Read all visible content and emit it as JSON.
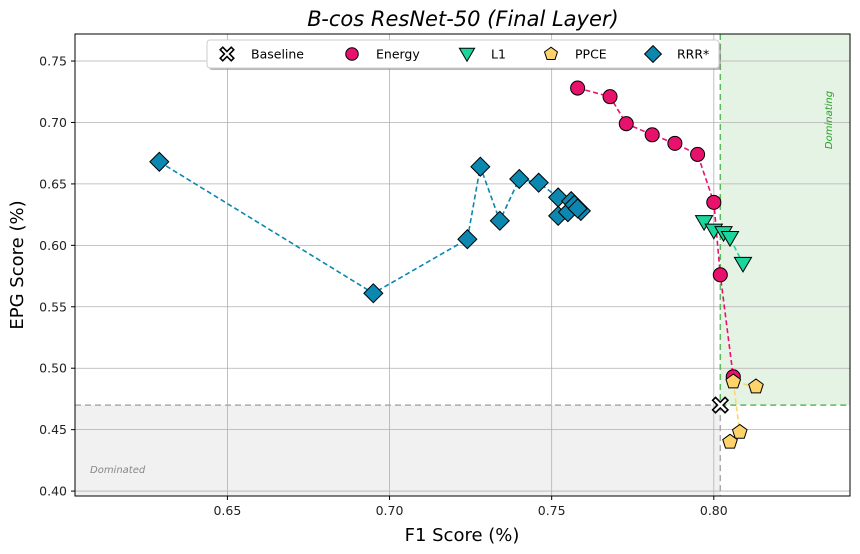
{
  "chart_data": {
    "type": "scatter",
    "title": "B-cos ResNet-50 (Final Layer)",
    "xlabel": "F1 Score (%)",
    "ylabel": "EPG Score (%)",
    "xlim": [
      0.603,
      0.842
    ],
    "ylim": [
      0.396,
      0.772
    ],
    "xticks": [
      0.65,
      0.7,
      0.75,
      0.8
    ],
    "xtick_labels": [
      "0.65",
      "0.70",
      "0.75",
      "0.80"
    ],
    "yticks": [
      0.4,
      0.45,
      0.5,
      0.55,
      0.6,
      0.65,
      0.7,
      0.75
    ],
    "ytick_labels": [
      "0.40",
      "0.45",
      "0.50",
      "0.55",
      "0.60",
      "0.65",
      "0.70",
      "0.75"
    ],
    "grid": true,
    "legend_position": "top-center",
    "baseline": {
      "x": 0.802,
      "y": 0.47
    },
    "regions": {
      "dominating_label": "Dominating",
      "dominated_label": "Dominated",
      "dominating_color": "#2ca02c",
      "dominated_color": "#999999"
    },
    "series": [
      {
        "name": "Baseline",
        "marker": "x-cross",
        "color": "#ffffff",
        "connected": false,
        "points": [
          [
            0.802,
            0.47
          ]
        ]
      },
      {
        "name": "Energy",
        "marker": "circle",
        "color": "#e8116b",
        "connected": true,
        "points": [
          [
            0.758,
            0.728
          ],
          [
            0.768,
            0.721
          ],
          [
            0.773,
            0.699
          ],
          [
            0.781,
            0.69
          ],
          [
            0.788,
            0.683
          ],
          [
            0.795,
            0.674
          ],
          [
            0.8,
            0.635
          ],
          [
            0.802,
            0.576
          ],
          [
            0.806,
            0.493
          ]
        ]
      },
      {
        "name": "L1",
        "marker": "triangle-down",
        "color": "#1ad69c",
        "connected": true,
        "points": [
          [
            0.797,
            0.619
          ],
          [
            0.8,
            0.612
          ],
          [
            0.803,
            0.61
          ],
          [
            0.805,
            0.606
          ],
          [
            0.809,
            0.585
          ]
        ]
      },
      {
        "name": "PPCE",
        "marker": "pentagon",
        "color": "#ffd36b",
        "connected": true,
        "points": [
          [
            0.813,
            0.485
          ],
          [
            0.806,
            0.489
          ],
          [
            0.808,
            0.448
          ],
          [
            0.805,
            0.44
          ]
        ]
      },
      {
        "name": "RRR*",
        "marker": "diamond",
        "color": "#0b87b0",
        "connected": true,
        "points": [
          [
            0.629,
            0.668
          ],
          [
            0.695,
            0.561
          ],
          [
            0.724,
            0.605
          ],
          [
            0.728,
            0.664
          ],
          [
            0.734,
            0.62
          ],
          [
            0.74,
            0.654
          ],
          [
            0.746,
            0.651
          ],
          [
            0.752,
            0.639
          ],
          [
            0.756,
            0.636
          ],
          [
            0.759,
            0.628
          ],
          [
            0.752,
            0.624
          ],
          [
            0.755,
            0.627
          ],
          [
            0.757,
            0.633
          ],
          [
            0.758,
            0.63
          ]
        ]
      }
    ]
  }
}
